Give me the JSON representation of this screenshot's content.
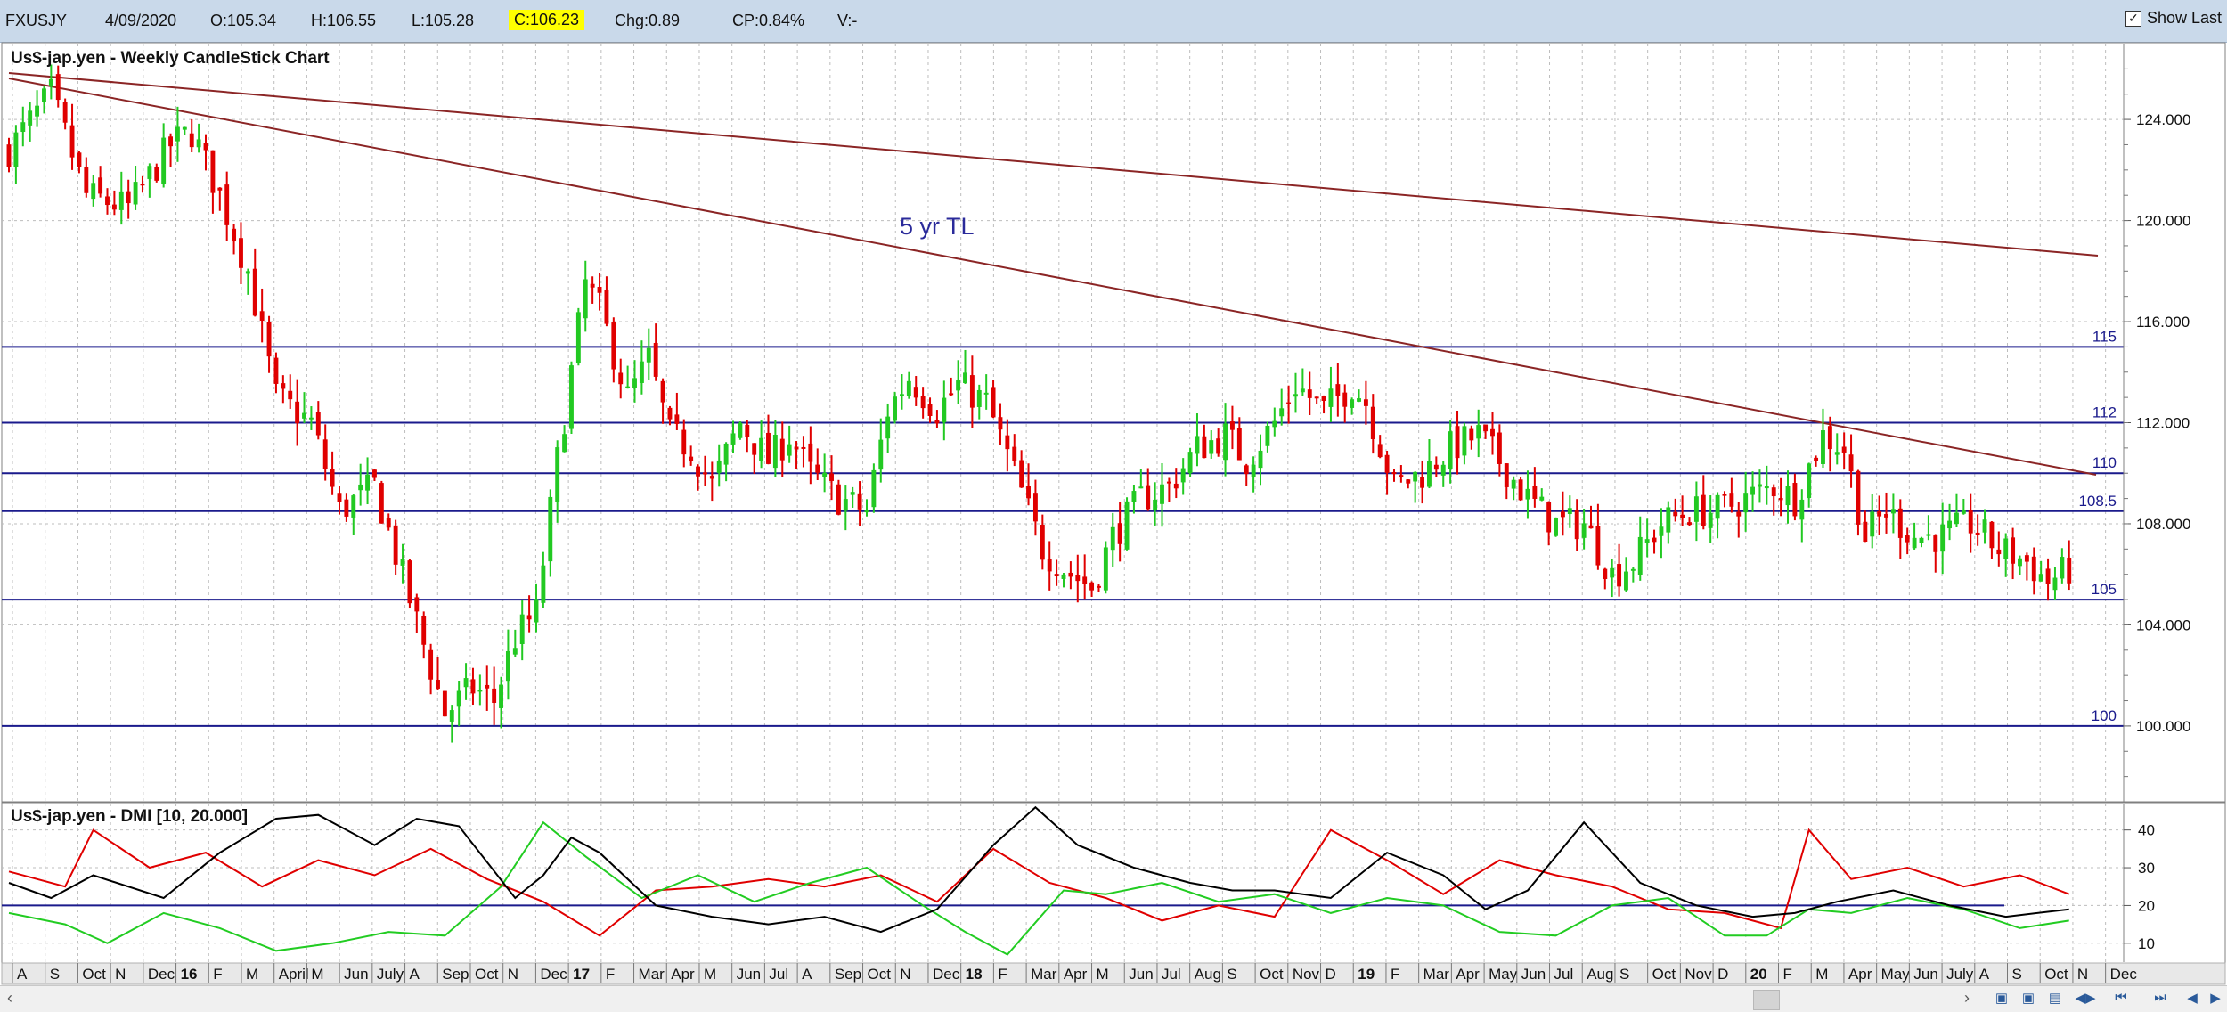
{
  "toolbar": {
    "symbol": "FXUSJY",
    "date": "4/09/2020",
    "open": "O:105.34",
    "high": "H:106.55",
    "low": "L:105.28",
    "close": "C:106.23",
    "change": "Chg:0.89",
    "change_pct": "CP:0.84%",
    "volume": "V:-",
    "show_last": "Show Last"
  },
  "colors": {
    "bull": "#22c922",
    "bear": "#e00000",
    "trendline": "#8b2525",
    "hline": "#1a1a8c",
    "plus_di": "#e00000",
    "minus_di": "#22cc22",
    "adx": "#000000"
  },
  "chart_data": [
    {
      "type": "candlestick",
      "title": "Us$-jap.yen - Weekly CandleStick Chart",
      "ylim": [
        97,
        127
      ],
      "y_ticks": [
        "124.000",
        "120.000",
        "116.000",
        "112.000",
        "108.000",
        "104.000",
        "100.000"
      ],
      "x_axis_labels": [
        "A",
        "S",
        "Oct",
        "N",
        "Dec",
        "16",
        "F",
        "M",
        "April",
        "M",
        "Jun",
        "July",
        "A",
        "Sep",
        "Oct",
        "N",
        "Dec",
        "17",
        "F",
        "Mar",
        "Apr",
        "M",
        "Jun",
        "Jul",
        "A",
        "Sep",
        "Oct",
        "N",
        "Dec",
        "18",
        "F",
        "Mar",
        "Apr",
        "M",
        "Jun",
        "Jul",
        "Aug",
        "S",
        "Oct",
        "Nov",
        "D",
        "19",
        "F",
        "Mar",
        "Apr",
        "May",
        "Jun",
        "Jul",
        "Aug",
        "S",
        "Oct",
        "Nov",
        "D",
        "20",
        "F",
        "M",
        "Apr",
        "May",
        "Jun",
        "July",
        "A",
        "S",
        "Oct",
        "N",
        "Dec"
      ],
      "horizontal_levels": [
        {
          "label": "115",
          "value": 115
        },
        {
          "label": "112",
          "value": 112
        },
        {
          "label": "110",
          "value": 110
        },
        {
          "label": "108.5",
          "value": 108.5
        },
        {
          "label": "105",
          "value": 105
        },
        {
          "label": "100",
          "value": 100
        }
      ],
      "annotation": "5 yr TL",
      "close_path": [
        {
          "x": 0,
          "y": 122.8
        },
        {
          "x": 6,
          "y": 125.0
        },
        {
          "x": 11,
          "y": 121.0
        },
        {
          "x": 17,
          "y": 120.5
        },
        {
          "x": 23,
          "y": 123.0
        },
        {
          "x": 26,
          "y": 123.5
        },
        {
          "x": 30,
          "y": 121.0
        },
        {
          "x": 34,
          "y": 118.0
        },
        {
          "x": 38,
          "y": 113.0
        },
        {
          "x": 43,
          "y": 112.0
        },
        {
          "x": 47,
          "y": 108.5
        },
        {
          "x": 52,
          "y": 109.5
        },
        {
          "x": 57,
          "y": 105.0
        },
        {
          "x": 62,
          "y": 100.5
        },
        {
          "x": 66,
          "y": 101.5
        },
        {
          "x": 69,
          "y": 101.0
        },
        {
          "x": 72,
          "y": 103.5
        },
        {
          "x": 75,
          "y": 104.5
        },
        {
          "x": 78,
          "y": 110.5
        },
        {
          "x": 82,
          "y": 117.5
        },
        {
          "x": 84,
          "y": 116.5
        },
        {
          "x": 88,
          "y": 113.0
        },
        {
          "x": 91,
          "y": 114.5
        },
        {
          "x": 94,
          "y": 111.5
        },
        {
          "x": 97,
          "y": 111.0
        },
        {
          "x": 100,
          "y": 109.5
        },
        {
          "x": 104,
          "y": 112.0
        },
        {
          "x": 108,
          "y": 110.5
        },
        {
          "x": 111,
          "y": 111.5
        },
        {
          "x": 114,
          "y": 110.0
        },
        {
          "x": 118,
          "y": 109.0
        },
        {
          "x": 122,
          "y": 108.5
        },
        {
          "x": 125,
          "y": 112.5
        },
        {
          "x": 128,
          "y": 113.8
        },
        {
          "x": 132,
          "y": 112.5
        },
        {
          "x": 135,
          "y": 113.5
        },
        {
          "x": 139,
          "y": 112.8
        },
        {
          "x": 143,
          "y": 110.0
        },
        {
          "x": 147,
          "y": 107.0
        },
        {
          "x": 151,
          "y": 106.0
        },
        {
          "x": 154,
          "y": 105.5
        },
        {
          "x": 157,
          "y": 107.5
        },
        {
          "x": 161,
          "y": 109.0
        },
        {
          "x": 165,
          "y": 109.5
        },
        {
          "x": 169,
          "y": 111.0
        },
        {
          "x": 173,
          "y": 111.5
        },
        {
          "x": 176,
          "y": 110.5
        },
        {
          "x": 180,
          "y": 112.0
        },
        {
          "x": 183,
          "y": 113.5
        },
        {
          "x": 187,
          "y": 112.5
        },
        {
          "x": 191,
          "y": 113.5
        },
        {
          "x": 193,
          "y": 112.8
        },
        {
          "x": 197,
          "y": 109.5
        },
        {
          "x": 201,
          "y": 110.0
        },
        {
          "x": 205,
          "y": 111.0
        },
        {
          "x": 209,
          "y": 111.5
        },
        {
          "x": 212,
          "y": 110.5
        },
        {
          "x": 216,
          "y": 109.0
        },
        {
          "x": 220,
          "y": 108.0
        },
        {
          "x": 224,
          "y": 108.0
        },
        {
          "x": 228,
          "y": 106.0
        },
        {
          "x": 231,
          "y": 106.5
        },
        {
          "x": 235,
          "y": 108.0
        },
        {
          "x": 239,
          "y": 108.5
        },
        {
          "x": 243,
          "y": 108.5
        },
        {
          "x": 247,
          "y": 109.0
        },
        {
          "x": 251,
          "y": 109.5
        },
        {
          "x": 254,
          "y": 109.0
        },
        {
          "x": 258,
          "y": 111.5
        },
        {
          "x": 261,
          "y": 111.0
        },
        {
          "x": 264,
          "y": 107.5
        },
        {
          "x": 267,
          "y": 108.5
        },
        {
          "x": 271,
          "y": 107.5
        },
        {
          "x": 275,
          "y": 107.5
        },
        {
          "x": 279,
          "y": 108.0
        },
        {
          "x": 283,
          "y": 107.0
        },
        {
          "x": 287,
          "y": 106.5
        },
        {
          "x": 290,
          "y": 105.7
        },
        {
          "x": 293,
          "y": 106.2
        }
      ]
    },
    {
      "type": "line",
      "title": "Us$-jap.yen - DMI [10, 20.000]",
      "ylim": [
        5,
        47
      ],
      "y_ticks": [
        "40",
        "30",
        "20",
        "10"
      ],
      "reference_level": 20,
      "series": [
        {
          "points": [
            [
              0,
              29
            ],
            [
              8,
              25
            ],
            [
              12,
              40
            ],
            [
              20,
              30
            ],
            [
              28,
              34
            ],
            [
              36,
              25
            ],
            [
              44,
              32
            ],
            [
              52,
              28
            ],
            [
              60,
              35
            ],
            [
              68,
              27
            ],
            [
              76,
              21
            ],
            [
              84,
              12
            ],
            [
              92,
              24
            ],
            [
              100,
              25
            ],
            [
              108,
              27
            ],
            [
              116,
              25
            ],
            [
              124,
              28
            ],
            [
              132,
              21
            ],
            [
              140,
              35
            ],
            [
              148,
              26
            ],
            [
              156,
              22
            ],
            [
              164,
              16
            ],
            [
              172,
              20
            ],
            [
              180,
              17
            ],
            [
              188,
              40
            ],
            [
              196,
              32
            ],
            [
              204,
              23
            ],
            [
              212,
              32
            ],
            [
              220,
              28
            ],
            [
              228,
              25
            ],
            [
              236,
              19
            ],
            [
              244,
              18
            ],
            [
              252,
              14
            ],
            [
              256,
              40
            ],
            [
              262,
              27
            ],
            [
              270,
              30
            ],
            [
              278,
              25
            ],
            [
              286,
              28
            ],
            [
              293,
              23
            ]
          ]
        },
        {
          "points": [
            [
              0,
              18
            ],
            [
              8,
              15
            ],
            [
              14,
              10
            ],
            [
              22,
              18
            ],
            [
              30,
              14
            ],
            [
              38,
              8
            ],
            [
              46,
              10
            ],
            [
              54,
              13
            ],
            [
              62,
              12
            ],
            [
              70,
              25
            ],
            [
              76,
              42
            ],
            [
              82,
              33
            ],
            [
              90,
              22
            ],
            [
              98,
              28
            ],
            [
              106,
              21
            ],
            [
              114,
              26
            ],
            [
              122,
              30
            ],
            [
              130,
              20
            ],
            [
              136,
              13
            ],
            [
              142,
              7
            ],
            [
              150,
              24
            ],
            [
              156,
              23
            ],
            [
              164,
              26
            ],
            [
              172,
              21
            ],
            [
              180,
              23
            ],
            [
              188,
              18
            ],
            [
              196,
              22
            ],
            [
              204,
              20
            ],
            [
              212,
              13
            ],
            [
              220,
              12
            ],
            [
              228,
              20
            ],
            [
              236,
              22
            ],
            [
              244,
              12
            ],
            [
              250,
              12
            ],
            [
              256,
              19
            ],
            [
              262,
              18
            ],
            [
              270,
              22
            ],
            [
              278,
              19
            ],
            [
              286,
              14
            ],
            [
              293,
              16
            ]
          ]
        },
        {
          "points": [
            [
              0,
              26
            ],
            [
              6,
              22
            ],
            [
              12,
              28
            ],
            [
              22,
              22
            ],
            [
              30,
              34
            ],
            [
              38,
              43
            ],
            [
              44,
              44
            ],
            [
              52,
              36
            ],
            [
              58,
              43
            ],
            [
              64,
              41
            ],
            [
              72,
              22
            ],
            [
              76,
              28
            ],
            [
              80,
              38
            ],
            [
              84,
              34
            ],
            [
              92,
              20
            ],
            [
              100,
              17
            ],
            [
              108,
              15
            ],
            [
              116,
              17
            ],
            [
              124,
              13
            ],
            [
              132,
              19
            ],
            [
              140,
              36
            ],
            [
              146,
              46
            ],
            [
              152,
              36
            ],
            [
              160,
              30
            ],
            [
              168,
              26
            ],
            [
              174,
              24
            ],
            [
              180,
              24
            ],
            [
              188,
              22
            ],
            [
              196,
              34
            ],
            [
              204,
              28
            ],
            [
              210,
              19
            ],
            [
              216,
              24
            ],
            [
              224,
              42
            ],
            [
              232,
              26
            ],
            [
              240,
              20
            ],
            [
              248,
              17
            ],
            [
              254,
              18
            ],
            [
              260,
              21
            ],
            [
              268,
              24
            ],
            [
              276,
              20
            ],
            [
              284,
              17
            ],
            [
              293,
              19
            ]
          ]
        }
      ]
    }
  ]
}
